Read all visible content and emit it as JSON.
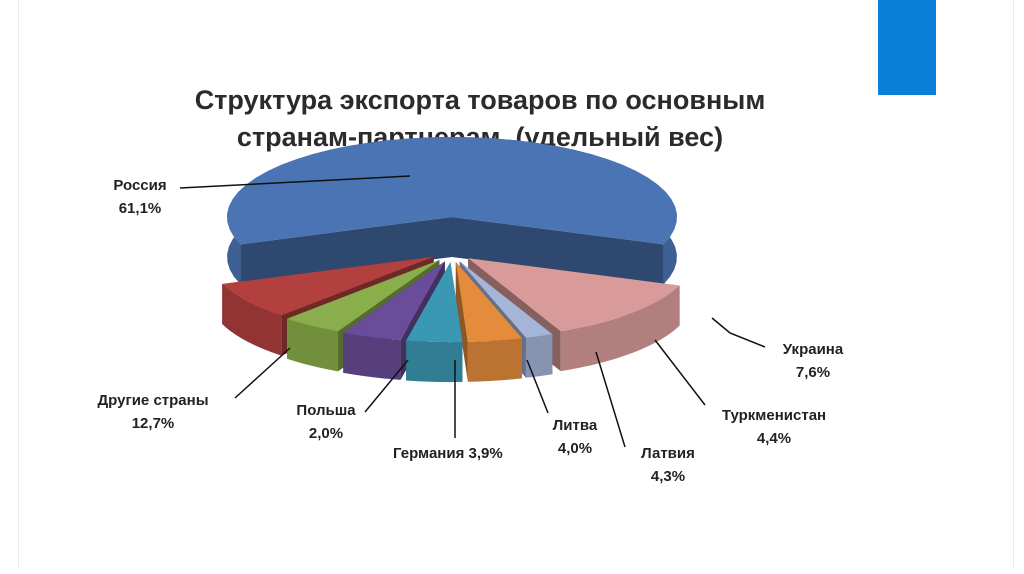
{
  "slide": {
    "accent_color": "#0B7FD8"
  },
  "chart_data": {
    "type": "pie",
    "title_line1": "Структура экспорта товаров по основным",
    "title_line2": "странам-партнерам, (удельный вес)",
    "slices": [
      {
        "label": "Россия",
        "value_text": "61,1%",
        "value": 61.1,
        "color": "#4A74B4"
      },
      {
        "label": "Другие страны",
        "value_text": "12,7%",
        "value": 12.7,
        "color": "#D89B9A"
      },
      {
        "label": "Польша",
        "value_text": "2,0%",
        "value": 2.0,
        "color": "#A5B5D8"
      },
      {
        "label": "Германия",
        "value_text": "3,9%",
        "value": 3.9,
        "color": "#E58C3C"
      },
      {
        "label": "Литва",
        "value_text": "4,0%",
        "value": 4.0,
        "color": "#3A98B4"
      },
      {
        "label": "Латвия",
        "value_text": "4,3%",
        "value": 4.3,
        "color": "#6A4D9A"
      },
      {
        "label": "Туркменистан",
        "value_text": "4,4%",
        "value": 4.4,
        "color": "#8AAE4B"
      },
      {
        "label": "Украина",
        "value_text": "7,6%",
        "value": 7.6,
        "color": "#B2403E"
      }
    ]
  }
}
